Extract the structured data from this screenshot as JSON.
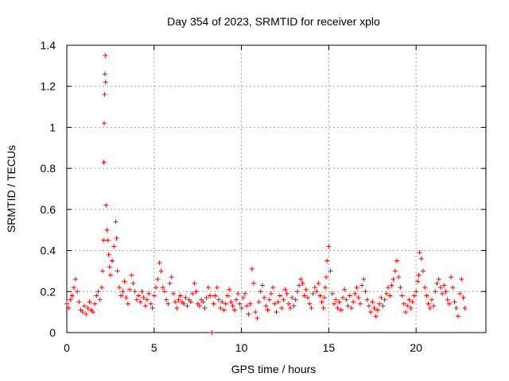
{
  "chart_data": {
    "type": "scatter",
    "title": "Day 354 of 2023, SRMTID for receiver xplo",
    "xlabel": "GPS time / hours",
    "ylabel": "SRMTID / TECUs",
    "xlim": [
      0,
      24
    ],
    "ylim": [
      0,
      1.4
    ],
    "x_ticks": [
      0,
      5,
      10,
      15,
      20
    ],
    "x_tick_labels": [
      "0",
      "5",
      "10",
      "15",
      "20"
    ],
    "y_ticks": [
      0,
      0.2,
      0.4,
      0.6,
      0.8,
      1,
      1.2,
      1.4
    ],
    "y_tick_labels": [
      "0",
      "0.2",
      "0.4",
      "0.6",
      "0.8",
      "1",
      "1.2",
      "1.4"
    ],
    "grid": true,
    "marker": "plus",
    "color": "#ff0000",
    "series": [
      {
        "name": "SRMTID",
        "x": [
          0.0,
          0.1,
          0.2,
          0.3,
          0.4,
          0.5,
          0.6,
          0.7,
          0.8,
          0.9,
          1.0,
          1.1,
          1.2,
          1.3,
          1.4,
          1.5,
          1.6,
          1.7,
          1.8,
          1.9,
          2.0,
          2.05,
          2.1,
          2.12,
          2.14,
          2.16,
          2.18,
          2.2,
          2.22,
          2.25,
          2.3,
          2.35,
          2.4,
          2.45,
          2.5,
          2.6,
          2.7,
          2.8,
          2.85,
          2.9,
          3.0,
          3.1,
          3.2,
          3.3,
          3.4,
          3.5,
          3.6,
          3.7,
          3.8,
          3.9,
          4.0,
          4.1,
          4.2,
          4.3,
          4.4,
          4.5,
          4.6,
          4.7,
          4.8,
          4.9,
          5.0,
          5.1,
          5.2,
          5.3,
          5.4,
          5.5,
          5.6,
          5.7,
          5.8,
          5.9,
          6.0,
          6.1,
          6.2,
          6.3,
          6.4,
          6.5,
          6.6,
          6.7,
          6.8,
          6.9,
          7.0,
          7.1,
          7.2,
          7.3,
          7.4,
          7.5,
          7.6,
          7.7,
          7.8,
          7.9,
          8.0,
          8.1,
          8.2,
          8.3,
          8.4,
          8.5,
          8.6,
          8.7,
          8.8,
          8.9,
          9.0,
          9.1,
          9.2,
          9.3,
          9.4,
          9.5,
          9.6,
          9.7,
          9.8,
          9.9,
          10.0,
          10.1,
          10.2,
          10.3,
          10.4,
          10.5,
          10.6,
          10.7,
          10.8,
          10.9,
          11.0,
          11.1,
          11.2,
          11.3,
          11.4,
          11.5,
          11.6,
          11.7,
          11.8,
          11.9,
          12.0,
          12.1,
          12.2,
          12.3,
          12.4,
          12.5,
          12.6,
          12.7,
          12.8,
          12.9,
          13.0,
          13.1,
          13.2,
          13.3,
          13.4,
          13.5,
          13.6,
          13.7,
          13.8,
          13.9,
          14.0,
          14.1,
          14.2,
          14.3,
          14.4,
          14.5,
          14.6,
          14.7,
          14.75,
          14.8,
          14.85,
          14.9,
          15.0,
          15.1,
          15.2,
          15.3,
          15.4,
          15.5,
          15.6,
          15.7,
          15.8,
          15.9,
          16.0,
          16.1,
          16.2,
          16.3,
          16.4,
          16.5,
          16.6,
          16.7,
          16.8,
          16.9,
          17.0,
          17.1,
          17.2,
          17.3,
          17.4,
          17.5,
          17.6,
          17.7,
          17.8,
          17.9,
          18.0,
          18.1,
          18.2,
          18.3,
          18.4,
          18.5,
          18.6,
          18.7,
          18.8,
          18.9,
          19.0,
          19.1,
          19.2,
          19.3,
          19.4,
          19.5,
          19.6,
          19.7,
          19.8,
          19.9,
          20.0,
          20.1,
          20.15,
          20.2,
          20.3,
          20.4,
          20.5,
          20.6,
          20.7,
          20.8,
          20.9,
          21.0,
          21.1,
          21.2,
          21.3,
          21.4,
          21.5,
          21.6,
          21.7,
          21.8,
          21.9,
          22.0,
          22.1,
          22.2,
          22.3,
          22.4,
          22.5,
          22.6,
          22.7,
          22.8
        ],
        "y": [
          0.14,
          0.12,
          0.16,
          0.18,
          0.22,
          0.26,
          0.2,
          0.15,
          0.11,
          0.1,
          0.13,
          0.09,
          0.12,
          0.15,
          0.11,
          0.1,
          0.14,
          0.18,
          0.2,
          0.16,
          0.22,
          0.3,
          0.45,
          0.83,
          1.02,
          1.16,
          1.26,
          1.35,
          1.22,
          0.62,
          0.5,
          0.45,
          0.38,
          0.32,
          0.28,
          0.35,
          0.42,
          0.54,
          0.46,
          0.3,
          0.22,
          0.18,
          0.2,
          0.25,
          0.17,
          0.14,
          0.21,
          0.28,
          0.24,
          0.2,
          0.16,
          0.18,
          0.15,
          0.2,
          0.17,
          0.13,
          0.16,
          0.19,
          0.14,
          0.12,
          0.18,
          0.22,
          0.26,
          0.34,
          0.3,
          0.22,
          0.2,
          0.16,
          0.14,
          0.24,
          0.27,
          0.19,
          0.15,
          0.12,
          0.16,
          0.18,
          0.15,
          0.14,
          0.17,
          0.13,
          0.16,
          0.15,
          0.19,
          0.24,
          0.2,
          0.14,
          0.13,
          0.16,
          0.15,
          0.12,
          0.17,
          0.22,
          0.18,
          0.0,
          0.14,
          0.18,
          0.22,
          0.16,
          0.12,
          0.15,
          0.11,
          0.14,
          0.18,
          0.21,
          0.15,
          0.13,
          0.11,
          0.16,
          0.19,
          0.14,
          0.12,
          0.17,
          0.19,
          0.13,
          0.09,
          0.14,
          0.31,
          0.24,
          0.1,
          0.07,
          0.15,
          0.2,
          0.23,
          0.17,
          0.13,
          0.11,
          0.16,
          0.19,
          0.22,
          0.14,
          0.1,
          0.15,
          0.18,
          0.12,
          0.16,
          0.21,
          0.19,
          0.14,
          0.12,
          0.17,
          0.13,
          0.16,
          0.2,
          0.23,
          0.26,
          0.24,
          0.18,
          0.21,
          0.17,
          0.14,
          0.12,
          0.19,
          0.22,
          0.2,
          0.24,
          0.18,
          0.15,
          0.12,
          0.17,
          0.22,
          0.27,
          0.35,
          0.42,
          0.3,
          0.19,
          0.14,
          0.16,
          0.12,
          0.15,
          0.11,
          0.17,
          0.21,
          0.16,
          0.13,
          0.18,
          0.12,
          0.15,
          0.19,
          0.22,
          0.17,
          0.14,
          0.23,
          0.26,
          0.2,
          0.16,
          0.13,
          0.1,
          0.15,
          0.12,
          0.08,
          0.11,
          0.14,
          0.17,
          0.13,
          0.16,
          0.19,
          0.22,
          0.18,
          0.23,
          0.26,
          0.3,
          0.35,
          0.27,
          0.22,
          0.18,
          0.14,
          0.1,
          0.13,
          0.16,
          0.12,
          0.15,
          0.18,
          0.2,
          0.25,
          0.28,
          0.39,
          0.36,
          0.3,
          0.22,
          0.18,
          0.14,
          0.12,
          0.16,
          0.13,
          0.2,
          0.24,
          0.26,
          0.22,
          0.19,
          0.23,
          0.2,
          0.16,
          0.14,
          0.27,
          0.22,
          0.15,
          0.12,
          0.08,
          0.19,
          0.26,
          0.17,
          0.12
        ]
      }
    ]
  }
}
